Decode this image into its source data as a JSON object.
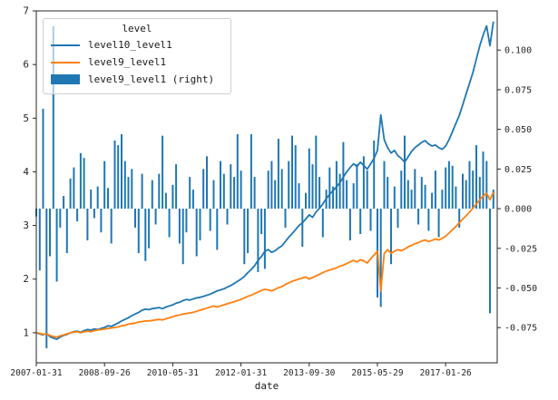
{
  "colors": {
    "line1": "#1f77b4",
    "line2": "#ff7f0e",
    "bars": "#1f77b4",
    "spine": "#262626",
    "tick_text": "#262626",
    "background": "#ffffff"
  },
  "chart_data": {
    "type": "line+bar",
    "title": "",
    "xlabel": "date",
    "x_start": "2007-01-31",
    "x_freq": "monthly",
    "n_points": 135,
    "legend": {
      "title": "level",
      "position": "upper-left",
      "entries": [
        {
          "label": "level10_level1",
          "type": "line",
          "color": "#1f77b4",
          "axis": "left"
        },
        {
          "label": "level9_level1",
          "type": "line",
          "color": "#ff7f0e",
          "axis": "left"
        },
        {
          "label": "level9_level1 (right)",
          "type": "bar",
          "color": "#1f77b4",
          "axis": "right"
        }
      ]
    },
    "left_axis": {
      "ticks": [
        1,
        2,
        3,
        4,
        5,
        6,
        7
      ],
      "range": [
        0.44,
        7.0
      ]
    },
    "right_axis": {
      "ticks": [
        0.1,
        0.075,
        0.05,
        0.025,
        0.0,
        -0.025,
        -0.05,
        -0.075
      ],
      "range": [
        -0.0972,
        0.1247
      ]
    },
    "x_ticks": [
      {
        "label": "2007-01-31",
        "m": 0
      },
      {
        "label": "2008-09-26",
        "m": 20
      },
      {
        "label": "2010-05-31",
        "m": 40
      },
      {
        "label": "2012-01-31",
        "m": 60
      },
      {
        "label": "2013-09-30",
        "m": 80
      },
      {
        "label": "2015-05-29",
        "m": 100
      },
      {
        "label": "2017-01-26",
        "m": 120
      }
    ],
    "grid": false,
    "series": [
      {
        "name": "level10_level1",
        "axis": "left",
        "type": "line",
        "values": [
          1.0,
          0.98,
          0.96,
          0.99,
          0.93,
          0.9,
          0.88,
          0.92,
          0.95,
          0.97,
          1.0,
          1.02,
          1.03,
          1.01,
          1.04,
          1.06,
          1.05,
          1.07,
          1.06,
          1.08,
          1.1,
          1.13,
          1.12,
          1.15,
          1.18,
          1.22,
          1.25,
          1.28,
          1.32,
          1.35,
          1.38,
          1.42,
          1.44,
          1.43,
          1.45,
          1.46,
          1.47,
          1.45,
          1.48,
          1.5,
          1.52,
          1.55,
          1.57,
          1.6,
          1.62,
          1.61,
          1.63,
          1.65,
          1.66,
          1.68,
          1.7,
          1.72,
          1.75,
          1.78,
          1.8,
          1.82,
          1.85,
          1.88,
          1.92,
          1.96,
          2.0,
          2.05,
          2.12,
          2.18,
          2.25,
          2.35,
          2.42,
          2.52,
          2.55,
          2.5,
          2.53,
          2.58,
          2.62,
          2.7,
          2.78,
          2.85,
          2.92,
          3.0,
          3.05,
          3.12,
          3.2,
          3.15,
          3.25,
          3.32,
          3.4,
          3.5,
          3.58,
          3.65,
          3.72,
          3.8,
          3.9,
          4.0,
          4.08,
          4.15,
          4.1,
          4.18,
          4.12,
          4.05,
          4.15,
          4.25,
          4.4,
          5.06,
          4.6,
          4.45,
          4.35,
          4.4,
          4.3,
          4.25,
          4.18,
          4.28,
          4.38,
          4.45,
          4.5,
          4.55,
          4.58,
          4.52,
          4.48,
          4.5,
          4.45,
          4.42,
          4.48,
          4.6,
          4.75,
          4.9,
          5.05,
          5.25,
          5.45,
          5.65,
          5.85,
          6.1,
          6.35,
          6.55,
          6.72,
          6.35,
          6.8
        ]
      },
      {
        "name": "level9_level1",
        "axis": "left",
        "type": "line",
        "values": [
          1.0,
          0.99,
          0.97,
          0.98,
          0.95,
          0.93,
          0.92,
          0.94,
          0.96,
          0.98,
          1.0,
          1.01,
          1.02,
          1.0,
          1.02,
          1.03,
          1.02,
          1.04,
          1.05,
          1.06,
          1.07,
          1.08,
          1.09,
          1.1,
          1.11,
          1.13,
          1.14,
          1.16,
          1.17,
          1.18,
          1.2,
          1.21,
          1.22,
          1.22,
          1.23,
          1.24,
          1.25,
          1.24,
          1.26,
          1.28,
          1.3,
          1.32,
          1.33,
          1.35,
          1.36,
          1.37,
          1.38,
          1.4,
          1.42,
          1.44,
          1.46,
          1.48,
          1.5,
          1.48,
          1.5,
          1.52,
          1.54,
          1.56,
          1.58,
          1.6,
          1.62,
          1.65,
          1.68,
          1.7,
          1.73,
          1.76,
          1.79,
          1.81,
          1.8,
          1.78,
          1.81,
          1.84,
          1.86,
          1.9,
          1.93,
          1.96,
          1.98,
          2.0,
          2.02,
          2.04,
          2.0,
          2.03,
          2.06,
          2.09,
          2.12,
          2.15,
          2.17,
          2.19,
          2.21,
          2.24,
          2.26,
          2.29,
          2.32,
          2.35,
          2.32,
          2.36,
          2.34,
          2.3,
          2.38,
          2.45,
          2.52,
          1.78,
          2.48,
          2.55,
          2.48,
          2.52,
          2.55,
          2.53,
          2.56,
          2.6,
          2.63,
          2.66,
          2.68,
          2.71,
          2.73,
          2.7,
          2.72,
          2.75,
          2.73,
          2.76,
          2.8,
          2.86,
          2.92,
          2.98,
          3.05,
          3.12,
          3.18,
          3.25,
          3.32,
          3.4,
          3.48,
          3.55,
          3.6,
          3.48,
          3.62
        ]
      },
      {
        "name": "level9_level1 (right)",
        "axis": "right",
        "type": "bar",
        "values": [
          -0.005,
          -0.039,
          0.063,
          -0.088,
          -0.03,
          0.115,
          -0.046,
          -0.012,
          0.008,
          -0.028,
          0.019,
          0.026,
          -0.008,
          0.035,
          0.032,
          -0.02,
          0.012,
          -0.006,
          0.014,
          -0.015,
          0.03,
          0.013,
          -0.022,
          0.043,
          0.04,
          0.047,
          0.03,
          0.02,
          0.025,
          -0.012,
          -0.028,
          0.022,
          -0.033,
          -0.025,
          0.018,
          -0.01,
          0.022,
          0.046,
          0.01,
          -0.018,
          0.015,
          0.028,
          -0.022,
          -0.035,
          -0.015,
          0.02,
          0.012,
          -0.03,
          -0.02,
          0.025,
          0.033,
          -0.014,
          0.018,
          -0.026,
          0.03,
          0.022,
          -0.01,
          0.028,
          0.02,
          0.047,
          0.024,
          -0.035,
          -0.028,
          0.047,
          0.02,
          -0.04,
          -0.016,
          -0.038,
          0.024,
          0.03,
          0.018,
          0.044,
          0.025,
          -0.012,
          0.03,
          0.046,
          0.04,
          0.016,
          -0.024,
          0.01,
          0.038,
          0.028,
          0.046,
          0.02,
          -0.018,
          0.012,
          0.026,
          0.014,
          0.03,
          0.022,
          0.042,
          0.018,
          -0.02,
          0.016,
          0.028,
          -0.016,
          0.033,
          0.024,
          -0.014,
          0.043,
          -0.056,
          -0.062,
          0.03,
          0.02,
          -0.035,
          0.014,
          -0.012,
          0.024,
          0.046,
          0.018,
          0.012,
          0.025,
          -0.01,
          0.02,
          0.015,
          -0.014,
          0.01,
          0.024,
          -0.018,
          0.012,
          0.026,
          0.03,
          0.027,
          0.014,
          -0.012,
          0.022,
          0.018,
          0.03,
          0.024,
          0.04,
          0.02,
          0.036,
          0.03,
          -0.066,
          0.012
        ]
      }
    ]
  }
}
